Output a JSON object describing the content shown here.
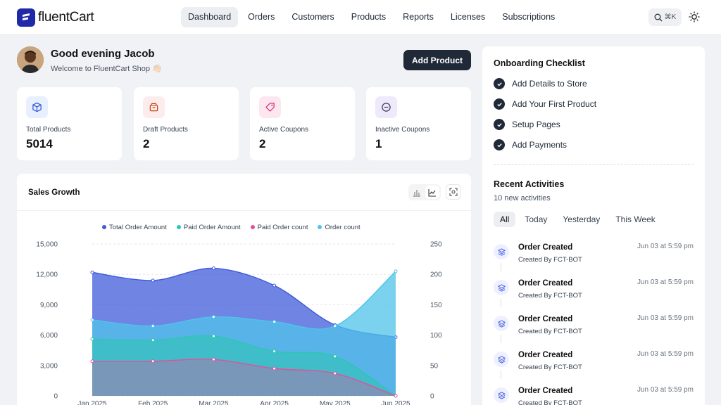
{
  "app": {
    "logo_text": "fluentCart"
  },
  "nav": {
    "items": [
      {
        "label": "Dashboard",
        "active": true
      },
      {
        "label": "Orders"
      },
      {
        "label": "Customers"
      },
      {
        "label": "Products"
      },
      {
        "label": "Reports"
      },
      {
        "label": "Licenses"
      },
      {
        "label": "Subscriptions"
      }
    ],
    "search_shortcut": "⌘K",
    "search_icon": "search-icon",
    "theme_icon": "sun-icon"
  },
  "greeting": {
    "title": "Good evening Jacob",
    "subtitle": "Welcome to FluentCart Shop 👋🏻"
  },
  "actions": {
    "add_product": "Add Product"
  },
  "stats": [
    {
      "label": "Total Products",
      "value": "5014",
      "icon": "box-icon",
      "bg": "#e8efff",
      "color": "#2f55d4"
    },
    {
      "label": "Draft Products",
      "value": "2",
      "icon": "archive-icon",
      "bg": "#fdecec",
      "color": "#c2410c"
    },
    {
      "label": "Active Coupons",
      "value": "2",
      "icon": "tag-icon",
      "bg": "#fde7ef",
      "color": "#db2777"
    },
    {
      "label": "Inactive Coupons",
      "value": "1",
      "icon": "minus-circle-icon",
      "bg": "#eee9fb",
      "color": "#3b3b5c"
    }
  ],
  "chart_card": {
    "title": "Sales Growth"
  },
  "chart_data": {
    "type": "area",
    "title": "Sales Growth",
    "categories": [
      "Jan 2025",
      "Feb 2025",
      "Mar 2025",
      "Apr 2025",
      "May 2025",
      "Jun 2025"
    ],
    "y_left": {
      "ticks": [
        "0",
        "3,000",
        "6,000",
        "9,000",
        "12,000",
        "15,000"
      ],
      "range": [
        0,
        15000
      ]
    },
    "y_right": {
      "ticks": [
        "0",
        "50",
        "100",
        "150",
        "200",
        "250"
      ],
      "range": [
        0,
        250
      ]
    },
    "grid": true,
    "legend_position": "top",
    "series": [
      {
        "name": "Total Order Amount",
        "axis": "left",
        "color": "#3f5bd9",
        "values": [
          12200,
          11400,
          12600,
          10900,
          7000,
          5800
        ]
      },
      {
        "name": "Paid Order Amount",
        "axis": "left",
        "color": "#2cc7b0",
        "values": [
          5600,
          5500,
          5900,
          4400,
          3900,
          0
        ]
      },
      {
        "name": "Paid Order count",
        "axis": "right",
        "color": "#e2509a",
        "values": [
          57,
          57,
          60,
          45,
          37,
          0
        ]
      },
      {
        "name": "Order count",
        "axis": "right",
        "color": "#4fc3ea",
        "values": [
          125,
          115,
          130,
          122,
          115,
          205
        ]
      }
    ]
  },
  "onboarding": {
    "title": "Onboarding Checklist",
    "items": [
      "Add Details to Store",
      "Add Your First Product",
      "Setup Pages",
      "Add Payments"
    ]
  },
  "activities": {
    "title": "Recent Activities",
    "subtitle": "10 new activities",
    "filters": [
      {
        "label": "All",
        "active": true
      },
      {
        "label": "Today"
      },
      {
        "label": "Yesterday"
      },
      {
        "label": "This Week"
      }
    ],
    "items": [
      {
        "title": "Order Created",
        "by": "Created By FCT-BOT",
        "time": "Jun 03 at 5:59 pm"
      },
      {
        "title": "Order Created",
        "by": "Created By FCT-BOT",
        "time": "Jun 03 at 5:59 pm"
      },
      {
        "title": "Order Created",
        "by": "Created By FCT-BOT",
        "time": "Jun 03 at 5:59 pm"
      },
      {
        "title": "Order Created",
        "by": "Created By FCT-BOT",
        "time": "Jun 03 at 5:59 pm"
      },
      {
        "title": "Order Created",
        "by": "Created By FCT-BOT",
        "time": "Jun 03 at 5:59 pm"
      }
    ]
  }
}
